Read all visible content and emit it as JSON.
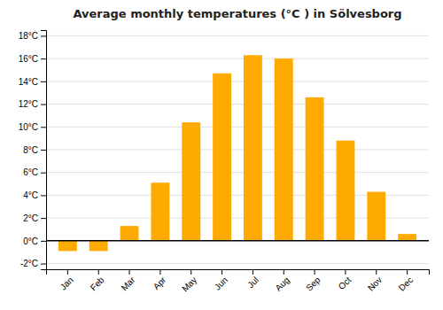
{
  "chart_data": {
    "type": "bar",
    "title": "Average monthly temperatures (°C ) in Sölvesborg",
    "categories": [
      "Jan",
      "Feb",
      "Mar",
      "Apr",
      "May",
      "Jun",
      "Jul",
      "Aug",
      "Sep",
      "Oct",
      "Nov",
      "Dec"
    ],
    "values": [
      -0.9,
      -0.9,
      1.3,
      5.1,
      10.4,
      14.7,
      16.3,
      16.0,
      12.6,
      8.8,
      4.3,
      0.6
    ],
    "color": "#FFAA00",
    "ylim": [
      -2.5,
      18.5
    ],
    "yticks": [
      {
        "value": -2,
        "label": "-2°C"
      },
      {
        "value": 0,
        "label": "0°C"
      },
      {
        "value": 2,
        "label": "2°C"
      },
      {
        "value": 4,
        "label": "4°C"
      },
      {
        "value": 6,
        "label": "6°C"
      },
      {
        "value": 8,
        "label": "8°C"
      },
      {
        "value": 10,
        "label": "10°C"
      },
      {
        "value": 12,
        "label": "12°C"
      },
      {
        "value": 14,
        "label": "14°C"
      },
      {
        "value": 16,
        "label": "16°C"
      },
      {
        "value": 18,
        "label": "18°C"
      }
    ],
    "grid": true
  }
}
